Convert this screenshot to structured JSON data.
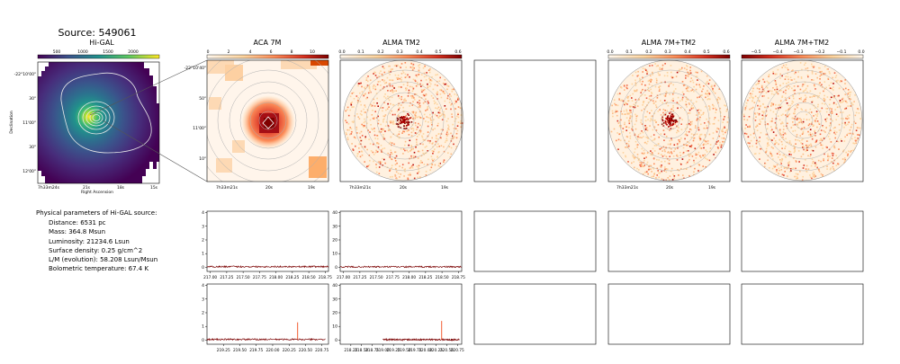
{
  "figure": {
    "title": "Source: 549061",
    "colors": {
      "accent": "#8b0000",
      "line": "#7a0000",
      "hot": "#f04a1a"
    }
  },
  "hi_gal": {
    "title": "Hi-GAL",
    "colorbar_ticks": [
      "500",
      "1000",
      "1500",
      "2000"
    ],
    "colormap": "viridis",
    "ylabel": "Declination",
    "xlabel": "Right Ascension",
    "y_ticks": [
      "-22°10'00\"",
      "30\"",
      "11'00\"",
      "30\"",
      "12'00\""
    ],
    "x_ticks": [
      "7h33m24s",
      "21s",
      "18s",
      "15s"
    ]
  },
  "aca7m": {
    "title": "ACA 7M",
    "colorbar_ticks": [
      "0",
      "2",
      "4",
      "6",
      "8",
      "10"
    ],
    "y_ticks": [
      "-22°10'40\"",
      "50\"",
      "11'00\"",
      "10\""
    ],
    "x_ticks": [
      "7h33m21s",
      "20s",
      "19s"
    ]
  },
  "almatm2": {
    "title": "ALMA TM2",
    "colorbar_ticks": [
      "0.0",
      "0.1",
      "0.2",
      "0.3",
      "0.4",
      "0.5",
      "0.6"
    ],
    "x_ticks": [
      "7h33m21s",
      "20s",
      "19s"
    ]
  },
  "alma7mtm2": {
    "title": "ALMA 7M+TM2",
    "colorbar_ticks": [
      "0.0",
      "0.1",
      "0.2",
      "0.3",
      "0.4",
      "0.5",
      "0.6"
    ],
    "x_ticks": [
      "7h33m21s",
      "20s",
      "19s"
    ]
  },
  "alma7mtm2_diff": {
    "title": "ALMA 7M+TM2",
    "colorbar_ticks": [
      "−0.5",
      "−0.4",
      "−0.3",
      "−0.2",
      "−0.1",
      "0.0"
    ],
    "x_ticks": [
      "7h33m21s",
      "20s",
      "19s"
    ]
  },
  "physical_params": {
    "header": "Physical parameters of Hi-GAL source:",
    "lines": [
      "Distance: 6531 pc",
      "Mass: 364.8 Msun",
      "Luminosity: 21234.6 Lsun",
      "Surface density: 0.25 g/cm^2",
      "L/M (evolution): 58.208 Lsun/Msun",
      "Bolometric temperature: 67.4 K"
    ]
  },
  "chart_data": [
    {
      "type": "line",
      "panel": "spectrum ACA 7M, upper sideband window 1",
      "x": [
        217.0,
        217.25,
        217.5,
        217.75,
        218.0,
        218.25,
        218.5,
        218.75
      ],
      "series": [
        {
          "values": [
            0.05,
            0.06,
            0.04,
            0.05,
            0.06,
            0.05,
            0.04,
            0.05
          ]
        }
      ],
      "xlim": [
        216.95,
        218.8
      ],
      "ylim": [
        -0.3,
        4.1
      ],
      "x_ticks": [
        "217.00",
        "217.25",
        "217.50",
        "217.75",
        "218.00",
        "218.25",
        "218.50",
        "218.75"
      ],
      "y_ticks": [
        "0",
        "1",
        "2",
        "3",
        "4"
      ]
    },
    {
      "type": "line",
      "panel": "spectrum ALMA TM2, window 1",
      "x": [
        217.0,
        217.25,
        217.5,
        217.75,
        218.0,
        218.25,
        218.5,
        218.75
      ],
      "series": [
        {
          "values": [
            0.3,
            0.4,
            0.3,
            0.35,
            0.3,
            0.4,
            0.35,
            0.3
          ]
        }
      ],
      "xlim": [
        216.95,
        218.8
      ],
      "ylim": [
        -3,
        41
      ],
      "x_ticks": [
        "217.00",
        "217.25",
        "217.50",
        "217.75",
        "218.00",
        "218.25",
        "218.50",
        "218.75"
      ],
      "y_ticks": [
        "0",
        "10",
        "20",
        "30",
        "40"
      ]
    },
    {
      "type": "line",
      "panel": "spectrum ACA 7M, window 2",
      "x": [
        219.25,
        219.5,
        219.75,
        220.0,
        220.25,
        220.38,
        220.5,
        220.75
      ],
      "series": [
        {
          "values": [
            0.05,
            0.05,
            0.06,
            0.05,
            0.05,
            1.3,
            0.05,
            0.05
          ]
        }
      ],
      "xlim": [
        219.0,
        220.85
      ],
      "ylim": [
        -0.3,
        4.1
      ],
      "x_ticks": [
        "219.25",
        "219.50",
        "219.75",
        "220.00",
        "220.25",
        "220.50",
        "220.75"
      ],
      "y_ticks": [
        "0",
        "1",
        "2",
        "3",
        "4"
      ]
    },
    {
      "type": "line",
      "panel": "spectrum ALMA TM2, window 2",
      "x": [
        219.25,
        219.5,
        219.75,
        220.0,
        220.25,
        220.38,
        220.5,
        220.75
      ],
      "series": [
        {
          "values": [
            0.3,
            0.35,
            0.3,
            0.3,
            0.35,
            14.0,
            0.3,
            0.35
          ]
        }
      ],
      "xlim": [
        218.0,
        220.85
      ],
      "ylim": [
        -3,
        41
      ],
      "x_ticks": [
        "218.25",
        "218.50",
        "218.75",
        "219.00",
        "219.25",
        "219.50",
        "219.75",
        "220.00",
        "220.25",
        "220.50",
        "220.75"
      ],
      "y_ticks": [
        "0",
        "10",
        "20",
        "30",
        "40"
      ]
    }
  ]
}
